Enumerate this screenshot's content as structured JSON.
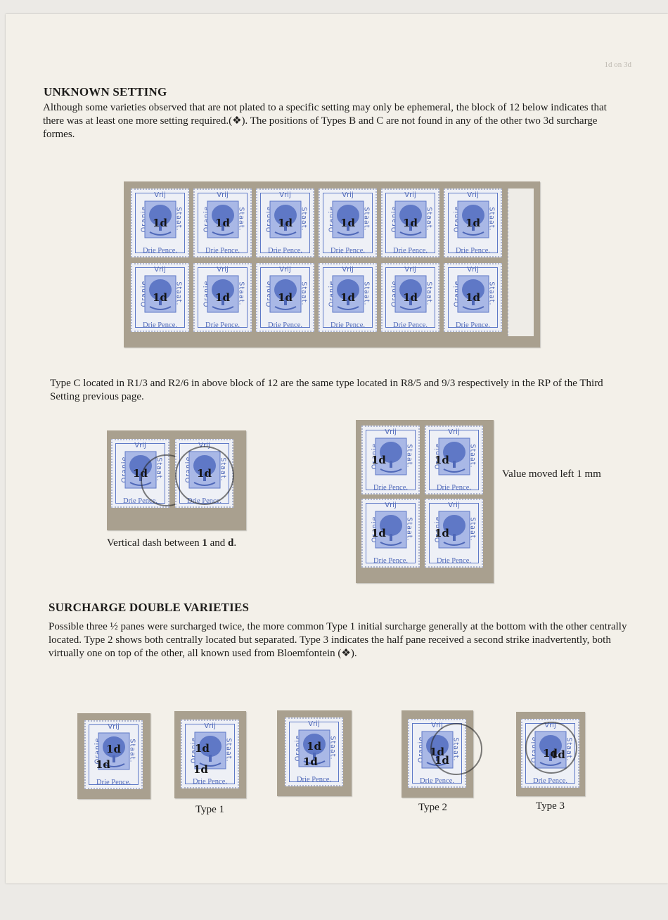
{
  "page_ref": "1d on 3d",
  "section1": {
    "heading": "UNKNOWN SETTING",
    "paragraph": "Although some varieties observed that are not plated to a specific setting may only be ephemeral, the block of 12 below indicates that there was at least one more setting required.(❖).  The positions of Types B and C are not found in any of the other two 3d surcharge formes."
  },
  "type_c_note": "Type C located in R1/3 and R2/6 in above block of 12 are the same type located in R8/5 and 9/3 respectively in the RP of the Third Setting previous page.",
  "pair_caption": {
    "prefix": "Vertical dash between ",
    "one": "1",
    "and": " and ",
    "d": "d",
    "suffix": "."
  },
  "block_caption": "Value moved left 1 mm",
  "section2": {
    "heading": "SURCHARGE DOUBLE VARIETIES",
    "paragraph": "Possible three ½ panes were surcharged twice, the more common Type 1 initial surcharge generally at the bottom with the other centrally located.  Type 2 shows both centrally located but separated.  Type 3 indicates the half pane received a second strike inadvertently, both virtually one on top of the other, all known used from Bloemfontein (❖)."
  },
  "stamp_text": {
    "top": "Vrij",
    "left": "Oranje",
    "right": "Staat.",
    "bottom": "Drie Pence.",
    "surcharge": "1d"
  },
  "type_labels": [
    "Type 1",
    "Type 2",
    "Type 3"
  ],
  "colors": {
    "stamp_blue": "#5e79c7",
    "mount": "#a9a08f",
    "paper": "#f3f0e9"
  }
}
